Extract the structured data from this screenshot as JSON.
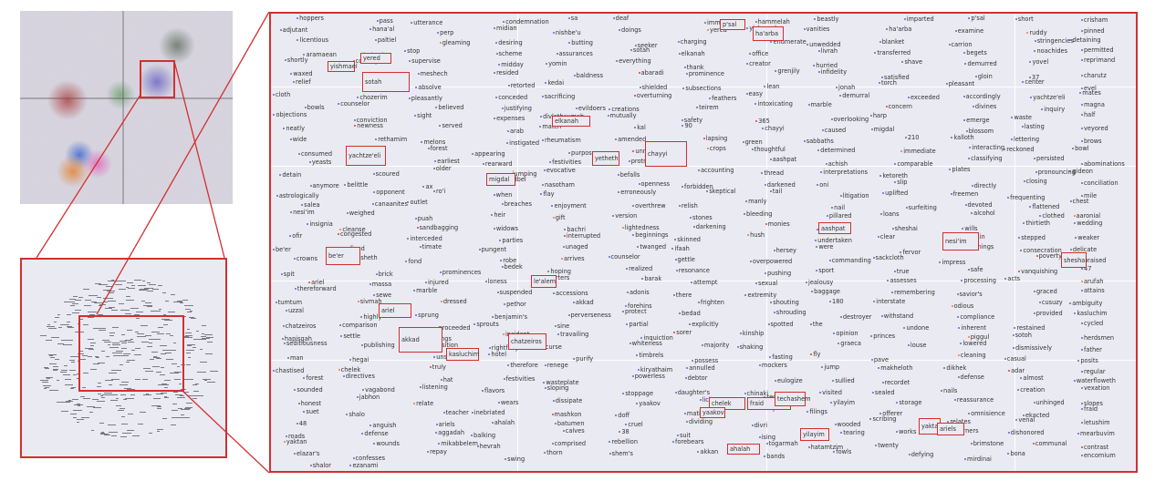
{
  "colors": {
    "highlight": "#d32f2f",
    "panel_bg": "#eaeaf2",
    "point_blue": "#5c6bc0",
    "point_orange": "#ef7d32"
  },
  "words": [
    "hoppers",
    "pass",
    "utterance",
    "condemnation",
    "sa",
    "deaf",
    "immediate",
    "hammelah",
    "beastly",
    "imparted",
    "p'sal",
    "short",
    "crisham",
    "adjutant",
    "hana'al",
    "perp",
    "midian",
    "nishbe'u",
    "doings",
    "yered",
    "yishmael",
    "vanities",
    "ha'arba",
    "examine",
    "ruddy",
    "pinned",
    "licentious",
    "paltiel",
    "gleaming",
    "desiring",
    "butting",
    "seeker",
    "charging",
    "enumerate",
    "unwedded",
    "blanket",
    "carrion",
    "stringencies",
    "detaining",
    "aramaean",
    "ledged",
    "stop",
    "scheme",
    "assurances",
    "sotah",
    "elkanah",
    "office",
    "livrah",
    "transferred",
    "begets",
    "noachides",
    "permitted",
    "shortly",
    "country",
    "supervise",
    "midday",
    "yomin",
    "everything",
    "thank",
    "creator",
    "hurried",
    "shave",
    "demurred",
    "yovel",
    "reprimand",
    "waxed",
    "arbah",
    "meshech",
    "resided",
    "baldness",
    "abaradi",
    "prominence",
    "grenjily",
    "infidelity",
    "satisfied",
    "gloin",
    "37",
    "charutz",
    "relief",
    "sleep",
    "absolve",
    "retorted",
    "kedai",
    "shielded",
    "subsections",
    "lean",
    "jonah",
    "torch",
    "pleasant",
    "center",
    "evel",
    "cloth",
    "chozerim",
    "pleasantly",
    "conceded",
    "sacrificing",
    "overturning",
    "feathers",
    "easy",
    "demurral",
    "exceeded",
    "accordingly",
    "yachtze'eli",
    "mates",
    "bowls",
    "counselor",
    "believed",
    "justifying",
    "evildoers",
    "creations",
    "teirem",
    "intoxicating",
    "marble",
    "concern",
    "divines",
    "inquiry",
    "magna",
    "objections",
    "conviction",
    "sight",
    "expenses",
    "divlathaymah",
    "mutually",
    "safety",
    "365",
    "overlooking",
    "harp",
    "emerge",
    "waste",
    "half",
    "neatly",
    "newness",
    "served",
    "arab",
    "match",
    "kal",
    "90",
    "chayyi",
    "caused",
    "migdal",
    "blossom",
    "lasting",
    "veyored",
    "wide",
    "rethamim",
    "melons",
    "instigated",
    "rheumatism",
    "amended",
    "lapsing",
    "green",
    "sabbaths",
    "210",
    "kalloth",
    "lettering",
    "brows",
    "consumed",
    "facing",
    "forest",
    "appearing",
    "purpose",
    "unnatural",
    "crops",
    "thoughtful",
    "determined",
    "immediate",
    "interacting",
    "reckoned",
    "bowl",
    "yeasts",
    "hosanah",
    "earliest",
    "rearward",
    "festivities",
    "protruding",
    "how",
    "aashpat",
    "achish",
    "comparable",
    "classifying",
    "persisted",
    "abominations",
    "detain",
    "scoured",
    "older",
    "jumping",
    "evocative",
    "befalls",
    "accounting",
    "thread",
    "interpretations",
    "ketoreth",
    "plates",
    "pronouncing",
    "gideon",
    "anymore",
    "belittle",
    "ax",
    "adbel",
    "nasotham",
    "openness",
    "forbidden",
    "darkened",
    "oni",
    "slip",
    "directly",
    "closing",
    "conciliation",
    "astrologically",
    "opponent",
    "ro'i",
    "when",
    "flay",
    "erroneously",
    "skeptical",
    "tail",
    "litigation",
    "uplifted",
    "freemen",
    "frequenting",
    "mile",
    "salea",
    "canaanites",
    "outlet",
    "breaches",
    "enjoyment",
    "overthrew",
    "relish",
    "manly",
    "nail",
    "surfeiting",
    "devoted",
    "flattened",
    "chest",
    "nesi'im",
    "weighed",
    "puah",
    "heir",
    "gift",
    "version",
    "stones",
    "bleeding",
    "pillared",
    "loans",
    "alcohol",
    "clothed",
    "aaronial",
    "insignia",
    "cleanse",
    "sandbagging",
    "widows",
    "bachri",
    "lightedness",
    "darkening",
    "monies",
    "gulf",
    "sheshai",
    "wills",
    "thirtieth",
    "wedding",
    "ofir",
    "congested",
    "interceded",
    "parties",
    "interrupted",
    "beginnings",
    "skinned",
    "hush",
    "undertaken",
    "clear",
    "gain",
    "stepped",
    "weaker",
    "be'er",
    "fixed",
    "timate",
    "pungent",
    "unaged",
    "twanged",
    "ifaah",
    "hersey",
    "were",
    "fervor",
    "lightnings",
    "consecration",
    "delicate",
    "crowns",
    "plasheth",
    "fond",
    "robe",
    "arrives",
    "counselor",
    "gettle",
    "overpowered",
    "commanding",
    "sackcloth",
    "impress",
    "poverty",
    "praised",
    "spit",
    "brick",
    "prominences",
    "bedek",
    "hoping",
    "realized",
    "resonance",
    "pushing",
    "sport",
    "true",
    "safe",
    "vanquishing",
    "47",
    "ariel",
    "massa",
    "injured",
    "loness",
    "quarters",
    "barak",
    "attempt",
    "sexual",
    "jealousy",
    "assesses",
    "processing",
    "acts",
    "arufah",
    "thereforward",
    "sewe",
    "marble",
    "suspended",
    "accessions",
    "adonis",
    "there",
    "extremity",
    "baggage",
    "remembering",
    "savior's",
    "graced",
    "attains",
    "tumtum",
    "sivmah",
    "dressed",
    "pethor",
    "akkad",
    "forehins",
    "frighten",
    "shouting",
    "180",
    "interstate",
    "odious",
    "cusuzy",
    "ambiguity",
    "uzzal",
    "highly",
    "sprung",
    "benjamin's",
    "perverseness",
    "protect",
    "bedad",
    "shrouding",
    "destroyer",
    "withstand",
    "compliance",
    "provided",
    "kasluchim",
    "chatzeiros",
    "comparison",
    "proceeded",
    "sprouts",
    "sine",
    "partial",
    "explicitly",
    "spotted",
    "the",
    "undone",
    "inherent",
    "restained",
    "cycled",
    "hapisgah",
    "settle",
    "gatherings",
    "incident",
    "travailing",
    "inquiction",
    "sorer",
    "kinship",
    "opinion",
    "princes",
    "piggul",
    "sotoh",
    "herdsmen",
    "seditiousness",
    "publishing",
    "decomposition",
    "rightfully",
    "curse",
    "whiteness",
    "majority",
    "shaking",
    "graeca",
    "louse",
    "lowered",
    "dismissively",
    "father",
    "man",
    "hegai",
    "unseen",
    "hotel",
    "purify",
    "timbrels",
    "possess",
    "fasting",
    "fly",
    "pave",
    "cleaning",
    "casual",
    "posits",
    "chastised",
    "chelek",
    "truly",
    "therefore",
    "renege",
    "kiryathaim",
    "annulled",
    "mockers",
    "jump",
    "makheloth",
    "dikhek",
    "adar",
    "regular",
    "forest",
    "directives",
    "hat",
    "festivities",
    "wasteplate",
    "powerless",
    "debtor",
    "eulogize",
    "sullied",
    "recordet",
    "defense",
    "almost",
    "waterfloweth",
    "sounded",
    "vagabond",
    "listening",
    "flavors",
    "sloping",
    "stoppage",
    "daughter's",
    "chinaki",
    "visited",
    "sealed",
    "nails",
    "creation",
    "vexation",
    "honest",
    "jabhon",
    "relate",
    "wears",
    "dissipate",
    "yaakov",
    "lichen",
    "techashem",
    "yilayim",
    "storage",
    "reassurance",
    "unhinged",
    "slopes",
    "suet",
    "shalo",
    "teacher",
    "inebriated",
    "mashkon",
    "doff",
    "mating",
    "seniority",
    "filings",
    "offerer",
    "omnisience",
    "ekacted",
    "fraid",
    "48",
    "anguish",
    "ariels",
    "ahalah",
    "batumen",
    "cruel",
    "dividing",
    "divri",
    "wooded",
    "scribing",
    "relates",
    "venal",
    "letushim",
    "roads",
    "defense",
    "aggadah",
    "balking",
    "calves",
    "38",
    "suit",
    "ising",
    "tearing",
    "works",
    "corners",
    "dishonored",
    "mearbuvim",
    "yaktan",
    "wounds",
    "mikabbelem",
    "hevrah",
    "comprised",
    "rebellion",
    "forebears",
    "togarmah",
    "hatamtzim",
    "twenty",
    "brimstone",
    "communal",
    "contrast",
    "elazar's",
    "confesses",
    "repay",
    "swing",
    "thorn",
    "shem's",
    "akkan",
    "bands",
    "fowls",
    "defying",
    "mirdinai",
    "bona",
    "encomium",
    "shalor",
    "ezanami"
  ],
  "highlighted": [
    "p'sal",
    "ha'arba",
    "yishmael",
    "yered",
    "sotah",
    "elkanah",
    "yachtze'eli",
    "yetheth",
    "chayyi",
    "migdal",
    "aashpat",
    "nesi'im",
    "sheshai",
    "be'er",
    "le'alem",
    "ariel",
    "akkad",
    "chatzeiros",
    "kasluchim",
    "chelek",
    "yaakov",
    "fraid",
    "techashem",
    "yilayim",
    "yaktan",
    "ariels",
    "ahalah",
    "widdal"
  ]
}
